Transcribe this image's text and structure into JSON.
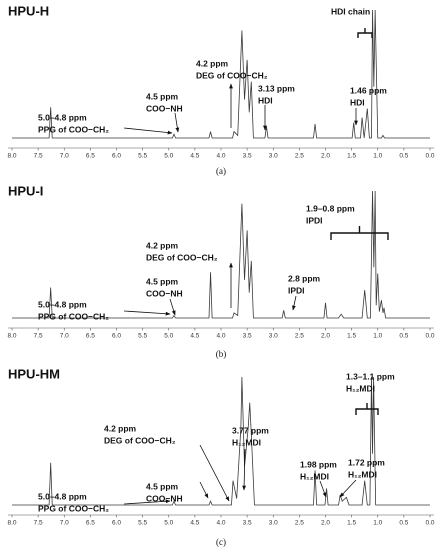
{
  "chart_data": [
    {
      "type": "line",
      "title": "HPU-H",
      "caption": "(a)",
      "color": "#3a3a3a",
      "xlim": [
        8,
        0
      ],
      "ylim": [
        0,
        100
      ],
      "xticks": [
        {
          "value": 8,
          "label": "8.0"
        },
        {
          "value": 7.5,
          "label": "7.5"
        },
        {
          "value": 7,
          "label": "7.0"
        },
        {
          "value": 6.5,
          "label": "6.5"
        },
        {
          "value": 6,
          "label": "6.0"
        },
        {
          "value": 5.5,
          "label": "5.5"
        },
        {
          "value": 5,
          "label": "5.0"
        },
        {
          "value": 4.5,
          "label": "4.5"
        },
        {
          "value": 4,
          "label": "4.0"
        },
        {
          "value": 3.5,
          "label": "3.5"
        },
        {
          "value": 3,
          "label": "3.0"
        },
        {
          "value": 2.5,
          "label": "2.5"
        },
        {
          "value": 2,
          "label": "2.0"
        },
        {
          "value": 1.5,
          "label": "1.5"
        },
        {
          "value": 1,
          "label": "1.0"
        },
        {
          "value": 0.5,
          "label": "0.5"
        },
        {
          "value": 0,
          "label": "0.0"
        }
      ],
      "x": [
        8.0,
        7.29,
        7.26,
        7.23,
        4.93,
        4.9,
        4.87,
        4.23,
        4.2,
        4.17,
        3.78,
        3.75,
        3.68,
        3.6,
        3.55,
        3.5,
        3.46,
        3.42,
        3.38,
        3.16,
        3.13,
        3.1,
        2.23,
        2.2,
        2.17,
        1.49,
        1.46,
        1.43,
        1.33,
        1.3,
        1.26,
        1.2,
        1.16,
        1.12,
        1.1,
        1.075,
        1.05,
        1.0,
        0.93,
        0.9,
        0.87,
        0.0
      ],
      "values": [
        0,
        0,
        24,
        0,
        0,
        3,
        0,
        0,
        5,
        0,
        0,
        5,
        2,
        84,
        30,
        61,
        20,
        44,
        0,
        0,
        9,
        0,
        0,
        11,
        0,
        0,
        12,
        0,
        0,
        16,
        0,
        23,
        0,
        0,
        100,
        40,
        100,
        0,
        0,
        2,
        0,
        0
      ],
      "annotations": [
        {
          "lines": [
            "5.0–4.8 ppm",
            "PPG of COO−CH₂"
          ]
        },
        {
          "lines": [
            "4.5 ppm",
            "COO−NH"
          ]
        },
        {
          "lines": [
            "4.2 ppm",
            "DEG of COO−CH₂"
          ]
        },
        {
          "lines": [
            "3.13 ppm",
            "HDI"
          ]
        },
        {
          "lines": [
            "1.46 ppm",
            "HDI"
          ]
        },
        {
          "lines": [
            "HDI chain"
          ]
        }
      ]
    },
    {
      "type": "line",
      "title": "HPU-I",
      "caption": "(b)",
      "color": "#3a3a3a",
      "xlim": [
        8,
        0
      ],
      "ylim": [
        0,
        100
      ],
      "xticks": [
        {
          "value": 8,
          "label": "8.0"
        },
        {
          "value": 7.5,
          "label": "7.5"
        },
        {
          "value": 7,
          "label": "7.0"
        },
        {
          "value": 6.5,
          "label": "6.5"
        },
        {
          "value": 6,
          "label": "6.0"
        },
        {
          "value": 5.5,
          "label": "5.5"
        },
        {
          "value": 5,
          "label": "5.0"
        },
        {
          "value": 4.5,
          "label": "4.5"
        },
        {
          "value": 4,
          "label": "4.0"
        },
        {
          "value": 3.5,
          "label": "3.5"
        },
        {
          "value": 3,
          "label": "3.0"
        },
        {
          "value": 2.5,
          "label": "2.5"
        },
        {
          "value": 2,
          "label": "2.0"
        },
        {
          "value": 1.5,
          "label": "1.5"
        },
        {
          "value": 1,
          "label": "1.0"
        },
        {
          "value": 0.5,
          "label": "0.5"
        },
        {
          "value": 0,
          "label": "0.0"
        }
      ],
      "x": [
        8.0,
        7.29,
        7.26,
        7.23,
        4.93,
        4.9,
        4.87,
        4.23,
        4.2,
        4.17,
        3.78,
        3.75,
        3.68,
        3.6,
        3.55,
        3.5,
        3.46,
        3.42,
        3.38,
        2.83,
        2.8,
        2.77,
        2.03,
        2.0,
        1.97,
        1.75,
        1.7,
        1.65,
        1.3,
        1.25,
        1.2,
        1.14,
        1.1,
        1.075,
        1.05,
        1.03,
        1.0,
        0.97,
        0.93,
        0.9,
        0.88,
        0.85,
        0.0
      ],
      "values": [
        0,
        0,
        24,
        0,
        0,
        2,
        0,
        0,
        36,
        0,
        0,
        4,
        2,
        90,
        30,
        69,
        20,
        45,
        0,
        0,
        6,
        0,
        0,
        12,
        0,
        0,
        3,
        0,
        0,
        22,
        0,
        0,
        100,
        40,
        100,
        10,
        35,
        5,
        14,
        4,
        8,
        0,
        0
      ],
      "annotations": [
        {
          "lines": [
            "5.0–4.8 ppm",
            "PPG of COO−CH₂"
          ]
        },
        {
          "lines": [
            "4.5 ppm",
            "COO−NH"
          ]
        },
        {
          "lines": [
            "4.2 ppm",
            "DEG of COO−CH₂"
          ]
        },
        {
          "lines": [
            "2.8 ppm",
            "IPDI"
          ]
        },
        {
          "lines": [
            "1.9–0.8 ppm",
            "IPDI"
          ]
        }
      ]
    },
    {
      "type": "line",
      "title": "HPU-HM",
      "caption": "(c)",
      "color": "#3a3a3a",
      "xlim": [
        8,
        0
      ],
      "ylim": [
        0,
        100
      ],
      "xticks": [
        {
          "value": 8,
          "label": "8.0"
        },
        {
          "value": 7.5,
          "label": "7.5"
        },
        {
          "value": 7,
          "label": "7.0"
        },
        {
          "value": 6.5,
          "label": "6.5"
        },
        {
          "value": 6,
          "label": "6.0"
        },
        {
          "value": 5.5,
          "label": "5.5"
        },
        {
          "value": 5,
          "label": "5.0"
        },
        {
          "value": 4.5,
          "label": "4.5"
        },
        {
          "value": 4,
          "label": "4.0"
        },
        {
          "value": 3.5,
          "label": "3.5"
        },
        {
          "value": 3,
          "label": "3.0"
        },
        {
          "value": 2.5,
          "label": "2.5"
        },
        {
          "value": 2,
          "label": "2.0"
        },
        {
          "value": 1.5,
          "label": "1.5"
        },
        {
          "value": 1,
          "label": "1.0"
        },
        {
          "value": 0.5,
          "label": "0.5"
        },
        {
          "value": 0,
          "label": "0.0"
        }
      ],
      "x": [
        8.0,
        7.29,
        7.26,
        7.23,
        4.93,
        4.9,
        4.87,
        4.23,
        4.2,
        4.17,
        3.8,
        3.77,
        3.7,
        3.62,
        3.6,
        3.55,
        3.48,
        3.45,
        3.42,
        3.36,
        2.23,
        2.2,
        2.17,
        2.01,
        1.98,
        1.95,
        1.75,
        1.72,
        1.68,
        1.6,
        1.55,
        1.3,
        1.25,
        1.2,
        1.15,
        1.12,
        1.1,
        1.08,
        1.04,
        0.0
      ],
      "values": [
        0,
        0,
        33,
        0,
        0,
        3,
        0,
        0,
        3,
        0,
        0,
        19,
        5,
        60,
        100,
        30,
        60,
        80,
        55,
        0,
        0,
        27,
        0,
        0,
        13,
        0,
        0,
        8,
        3,
        6,
        0,
        0,
        19,
        0,
        0,
        100,
        40,
        100,
        0,
        0
      ],
      "annotations": [
        {
          "lines": [
            "5.0–4.8 ppm",
            "PPG of COO−CH₂"
          ]
        },
        {
          "lines": [
            "4.5 ppm",
            "COO−NH"
          ]
        },
        {
          "lines": [
            "4.2 ppm",
            "DEG of COO−CH₂"
          ]
        },
        {
          "lines": [
            "3.77 ppm",
            "H₁₂MDI"
          ]
        },
        {
          "lines": [
            "1.98 ppm",
            "H₁₂MDI"
          ]
        },
        {
          "lines": [
            "1.72 ppm",
            "H₁₂MDI"
          ]
        },
        {
          "lines": [
            "1.3–1.1 ppm",
            "H₁₂MDI"
          ]
        }
      ]
    }
  ]
}
